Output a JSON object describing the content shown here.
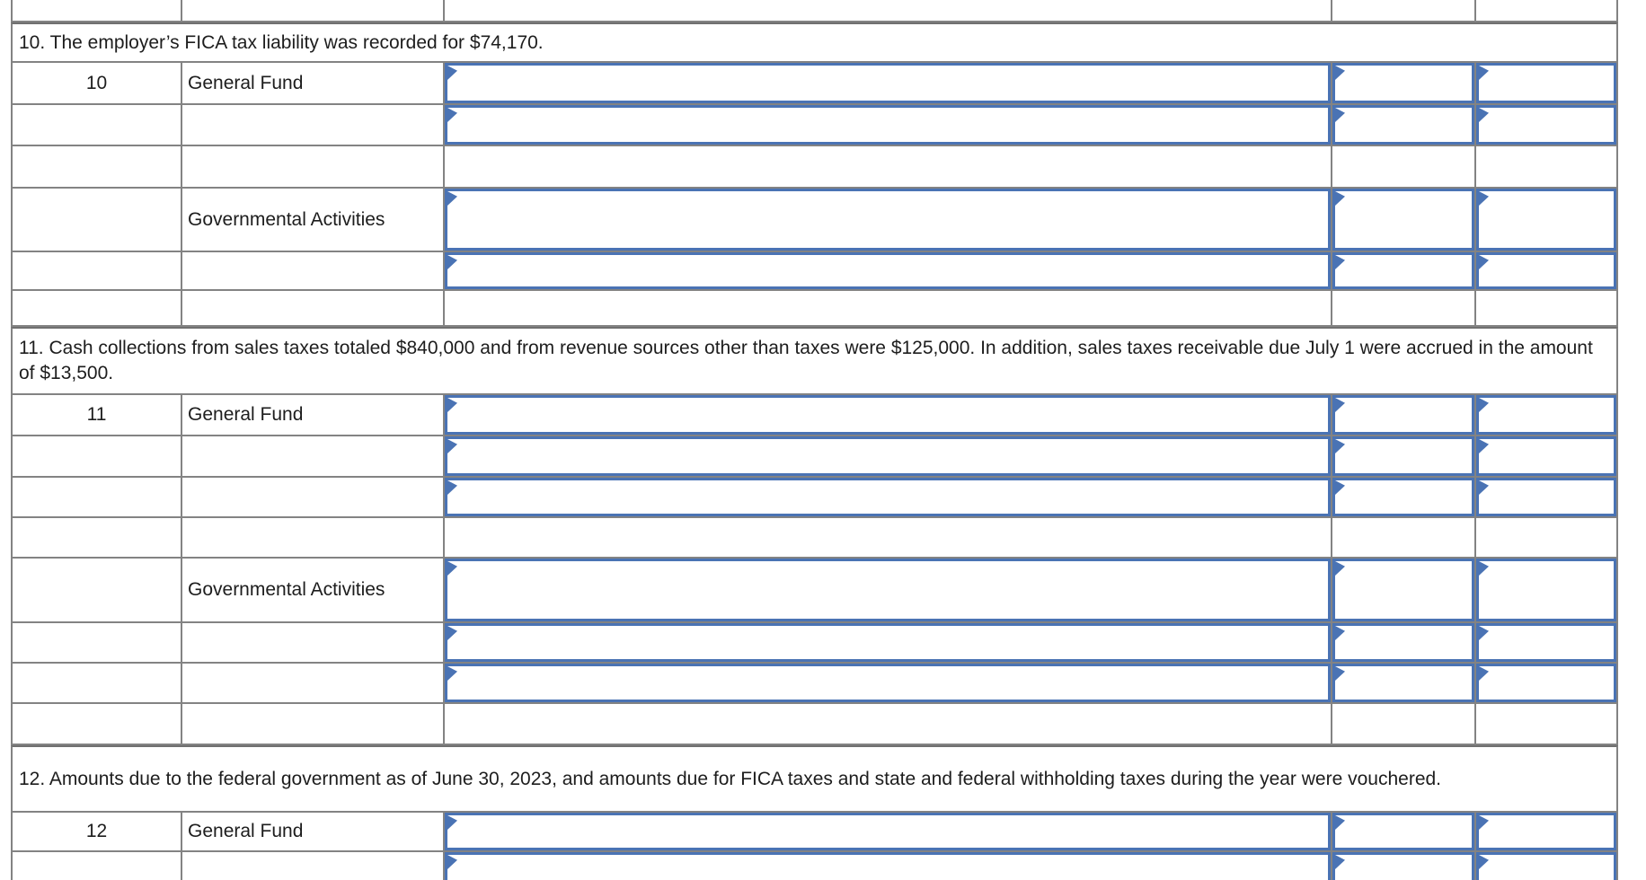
{
  "colors": {
    "input_border_blue": "#4a73b4",
    "grid_line_gray": "#838383",
    "text": "#1d1d1d",
    "background": "#ffffff"
  },
  "journal_table": {
    "rows": [
      {
        "kind": "spacer"
      },
      {
        "kind": "description",
        "text": "10. The employer’s FICA tax liability was recorded for $74,170."
      },
      {
        "kind": "entry",
        "number": "10",
        "fund": "General Fund",
        "inputs": true
      },
      {
        "kind": "entry",
        "inputs": true
      },
      {
        "kind": "spacer"
      },
      {
        "kind": "entry",
        "fund": "Governmental Activities",
        "inputs": true,
        "tall": true
      },
      {
        "kind": "entry",
        "inputs": true
      },
      {
        "kind": "spacer"
      },
      {
        "kind": "description",
        "text": "11. Cash collections from sales taxes totaled $840,000 and from revenue sources other than taxes were $125,000. In addition, sales taxes receivable due July 1 were accrued in the amount of $13,500."
      },
      {
        "kind": "entry",
        "number": "11",
        "fund": "General Fund",
        "inputs": true
      },
      {
        "kind": "entry",
        "inputs": true
      },
      {
        "kind": "entry",
        "inputs": true
      },
      {
        "kind": "spacer"
      },
      {
        "kind": "entry",
        "fund": "Governmental Activities",
        "inputs": true,
        "tall": true
      },
      {
        "kind": "entry",
        "inputs": true
      },
      {
        "kind": "entry",
        "inputs": true
      },
      {
        "kind": "spacer"
      },
      {
        "kind": "description",
        "text": "12. Amounts due to the federal government as of June 30, 2023, and amounts due for FICA taxes and state and federal withholding taxes during the year were vouchered."
      },
      {
        "kind": "entry",
        "number": "12",
        "fund": "General Fund",
        "inputs": true
      },
      {
        "kind": "entry",
        "inputs": true
      }
    ]
  }
}
